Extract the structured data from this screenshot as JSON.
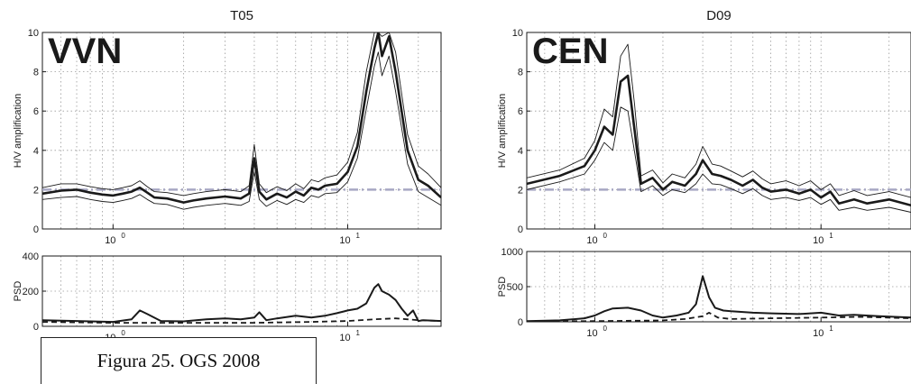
{
  "figure": {
    "caption": "Figura 25.  OGS 2008",
    "colors": {
      "ink": "#1a1a1a",
      "grid": "#9a9a9a",
      "threshold": "#a8a8c4",
      "paper": "#ffffff"
    }
  },
  "chart_data": [
    {
      "id": "T05-hv",
      "type": "line",
      "title": "T05",
      "station": "VVN",
      "xlabel": "",
      "ylabel": "H/V amplification",
      "xscale": "log",
      "xlim": [
        0.5,
        25
      ],
      "ylim": [
        0,
        10
      ],
      "yticks": [
        0,
        2,
        4,
        6,
        8,
        10
      ],
      "xticks": [
        {
          "value": 1,
          "label": "10",
          "exp": "0"
        },
        {
          "value": 10,
          "label": "10",
          "exp": "1"
        }
      ],
      "grid": true,
      "threshold": 2,
      "series": [
        {
          "role": "mean",
          "x": [
            0.5,
            0.6,
            0.7,
            0.8,
            0.9,
            1.0,
            1.1,
            1.2,
            1.3,
            1.4,
            1.5,
            1.7,
            2.0,
            2.2,
            2.5,
            3.0,
            3.5,
            3.8,
            4.0,
            4.2,
            4.5,
            5.0,
            5.5,
            6.0,
            6.5,
            7.0,
            7.5,
            8.0,
            9.0,
            10.0,
            11.0,
            12.0,
            13.0,
            13.5,
            14.0,
            15.0,
            16.0,
            18.0,
            20.0,
            22.0,
            25.0
          ],
          "y": [
            1.8,
            1.95,
            2.0,
            1.85,
            1.75,
            1.7,
            1.8,
            1.9,
            2.1,
            1.85,
            1.6,
            1.55,
            1.35,
            1.45,
            1.55,
            1.65,
            1.55,
            1.8,
            3.6,
            1.9,
            1.5,
            1.8,
            1.6,
            1.9,
            1.7,
            2.1,
            2.0,
            2.2,
            2.3,
            2.9,
            4.2,
            7.0,
            9.2,
            10.0,
            8.8,
            9.8,
            8.0,
            4.0,
            2.5,
            2.2,
            1.6
          ]
        },
        {
          "role": "upper",
          "x": [
            0.5,
            0.6,
            0.7,
            0.8,
            0.9,
            1.0,
            1.1,
            1.2,
            1.3,
            1.4,
            1.5,
            1.7,
            2.0,
            2.2,
            2.5,
            3.0,
            3.5,
            3.8,
            4.0,
            4.2,
            4.5,
            5.0,
            5.5,
            6.0,
            6.5,
            7.0,
            7.5,
            8.0,
            9.0,
            10.0,
            11.0,
            12.0,
            13.0,
            13.5,
            14.0,
            15.0,
            16.0,
            18.0,
            20.0,
            22.0,
            25.0
          ],
          "y": [
            2.1,
            2.3,
            2.3,
            2.15,
            2.05,
            2.0,
            2.1,
            2.2,
            2.45,
            2.15,
            1.9,
            1.85,
            1.7,
            1.8,
            1.9,
            2.0,
            1.9,
            2.2,
            4.3,
            2.3,
            1.85,
            2.15,
            1.95,
            2.3,
            2.05,
            2.5,
            2.4,
            2.6,
            2.75,
            3.4,
            4.9,
            8.0,
            10.0,
            10.0,
            9.8,
            10.0,
            9.0,
            4.8,
            3.2,
            2.8,
            2.1
          ]
        },
        {
          "role": "lower",
          "x": [
            0.5,
            0.6,
            0.7,
            0.8,
            0.9,
            1.0,
            1.1,
            1.2,
            1.3,
            1.4,
            1.5,
            1.7,
            2.0,
            2.2,
            2.5,
            3.0,
            3.5,
            3.8,
            4.0,
            4.2,
            4.5,
            5.0,
            5.5,
            6.0,
            6.5,
            7.0,
            7.5,
            8.0,
            9.0,
            10.0,
            11.0,
            12.0,
            13.0,
            13.5,
            14.0,
            15.0,
            16.0,
            18.0,
            20.0,
            22.0,
            25.0
          ],
          "y": [
            1.5,
            1.6,
            1.65,
            1.5,
            1.4,
            1.35,
            1.45,
            1.55,
            1.75,
            1.5,
            1.3,
            1.25,
            1.0,
            1.1,
            1.2,
            1.3,
            1.2,
            1.4,
            2.9,
            1.5,
            1.15,
            1.45,
            1.25,
            1.5,
            1.35,
            1.7,
            1.6,
            1.8,
            1.85,
            2.4,
            3.6,
            6.1,
            8.3,
            9.0,
            7.8,
            8.8,
            7.0,
            3.3,
            1.9,
            1.6,
            1.2
          ]
        }
      ]
    },
    {
      "id": "T05-psd",
      "type": "line",
      "title": "",
      "xlabel": "",
      "ylabel": "PSD",
      "xscale": "log",
      "xlim": [
        0.5,
        25
      ],
      "ylim": [
        0,
        400
      ],
      "yticks": [
        0,
        200,
        400
      ],
      "xticks": [
        {
          "value": 1,
          "label": "10",
          "exp": "0"
        },
        {
          "value": 10,
          "label": "10",
          "exp": "1"
        }
      ],
      "grid": true,
      "series": [
        {
          "role": "solid",
          "x": [
            0.5,
            0.7,
            1.0,
            1.2,
            1.3,
            1.4,
            1.6,
            2.0,
            2.5,
            3.0,
            3.5,
            4.0,
            4.2,
            4.5,
            5.0,
            6.0,
            7.0,
            8.0,
            9.0,
            10.0,
            11.0,
            12.0,
            13.0,
            13.5,
            14.0,
            15.0,
            16.0,
            17.0,
            18.0,
            19.0,
            20.0,
            21.0,
            25.0
          ],
          "y": [
            35,
            30,
            25,
            40,
            90,
            70,
            30,
            28,
            40,
            45,
            40,
            50,
            80,
            35,
            45,
            60,
            50,
            60,
            75,
            90,
            100,
            130,
            220,
            240,
            200,
            180,
            150,
            100,
            60,
            90,
            30,
            35,
            30
          ]
        },
        {
          "role": "dashed",
          "x": [
            0.5,
            1.0,
            2.0,
            3.0,
            4.0,
            5.0,
            7.0,
            10.0,
            13.0,
            16.0,
            20.0,
            25.0
          ],
          "y": [
            25,
            20,
            20,
            20,
            20,
            22,
            25,
            30,
            40,
            45,
            35,
            30
          ]
        }
      ]
    },
    {
      "id": "D09-hv",
      "type": "line",
      "title": "D09",
      "station": "CEN",
      "xlabel": "",
      "ylabel": "H/V amplification",
      "xscale": "log",
      "xlim": [
        0.5,
        25
      ],
      "ylim": [
        0,
        10
      ],
      "yticks": [
        0,
        2,
        4,
        6,
        8,
        10
      ],
      "xticks": [
        {
          "value": 1,
          "label": "10",
          "exp": "0"
        },
        {
          "value": 10,
          "label": "10",
          "exp": "1"
        }
      ],
      "grid": true,
      "threshold": 2,
      "series": [
        {
          "role": "mean",
          "x": [
            0.5,
            0.7,
            0.9,
            1.0,
            1.1,
            1.2,
            1.3,
            1.4,
            1.5,
            1.6,
            1.8,
            2.0,
            2.2,
            2.5,
            2.8,
            3.0,
            3.3,
            3.6,
            4.0,
            4.5,
            5.0,
            5.5,
            6.0,
            7.0,
            8.0,
            9.0,
            10.0,
            11.0,
            12.0,
            14.0,
            16.0,
            20.0,
            25.0
          ],
          "y": [
            2.3,
            2.7,
            3.2,
            4.0,
            5.2,
            4.8,
            7.5,
            7.8,
            5.0,
            2.3,
            2.6,
            2.0,
            2.4,
            2.2,
            2.8,
            3.5,
            2.8,
            2.7,
            2.5,
            2.2,
            2.5,
            2.1,
            1.9,
            2.0,
            1.8,
            2.0,
            1.6,
            1.9,
            1.3,
            1.5,
            1.3,
            1.5,
            1.2
          ]
        },
        {
          "role": "upper",
          "x": [
            0.5,
            0.7,
            0.9,
            1.0,
            1.1,
            1.2,
            1.3,
            1.4,
            1.5,
            1.6,
            1.8,
            2.0,
            2.2,
            2.5,
            2.8,
            3.0,
            3.3,
            3.6,
            4.0,
            4.5,
            5.0,
            5.5,
            6.0,
            7.0,
            8.0,
            9.0,
            10.0,
            11.0,
            12.0,
            14.0,
            16.0,
            20.0,
            25.0
          ],
          "y": [
            2.6,
            3.0,
            3.6,
            4.5,
            6.1,
            5.7,
            8.8,
            9.4,
            6.3,
            2.7,
            3.0,
            2.35,
            2.8,
            2.6,
            3.3,
            4.2,
            3.3,
            3.2,
            2.95,
            2.65,
            2.95,
            2.55,
            2.3,
            2.45,
            2.2,
            2.45,
            2.0,
            2.3,
            1.7,
            1.95,
            1.7,
            1.9,
            1.6
          ]
        },
        {
          "role": "lower",
          "x": [
            0.5,
            0.7,
            0.9,
            1.0,
            1.1,
            1.2,
            1.3,
            1.4,
            1.5,
            1.6,
            1.8,
            2.0,
            2.2,
            2.5,
            2.8,
            3.0,
            3.3,
            3.6,
            4.0,
            4.5,
            5.0,
            5.5,
            6.0,
            7.0,
            8.0,
            9.0,
            10.0,
            11.0,
            12.0,
            14.0,
            16.0,
            20.0,
            25.0
          ],
          "y": [
            2.0,
            2.4,
            2.8,
            3.5,
            4.4,
            4.0,
            6.2,
            6.0,
            3.9,
            1.9,
            2.2,
            1.7,
            2.0,
            1.85,
            2.3,
            2.8,
            2.3,
            2.25,
            2.05,
            1.8,
            2.05,
            1.7,
            1.5,
            1.6,
            1.45,
            1.6,
            1.25,
            1.5,
            0.95,
            1.1,
            0.95,
            1.1,
            0.85
          ]
        }
      ]
    },
    {
      "id": "D09-psd",
      "type": "line",
      "title": "",
      "xlabel": "",
      "ylabel": "PSD",
      "xscale": "log",
      "xlim": [
        0.5,
        25
      ],
      "ylim": [
        0,
        1000
      ],
      "yticks": [
        0,
        500,
        1000
      ],
      "xticks": [
        {
          "value": 1,
          "label": "10",
          "exp": "0"
        },
        {
          "value": 10,
          "label": "10",
          "exp": "1"
        }
      ],
      "grid": true,
      "series": [
        {
          "role": "solid",
          "x": [
            0.5,
            0.7,
            0.9,
            1.0,
            1.1,
            1.2,
            1.4,
            1.6,
            1.8,
            2.0,
            2.3,
            2.6,
            2.8,
            3.0,
            3.2,
            3.4,
            3.7,
            4.0,
            5.0,
            6.0,
            8.0,
            10.0,
            12.0,
            14.0,
            18.0,
            25.0
          ],
          "y": [
            10,
            20,
            50,
            90,
            150,
            190,
            200,
            160,
            90,
            60,
            90,
            130,
            250,
            650,
            350,
            200,
            160,
            150,
            130,
            120,
            110,
            130,
            90,
            100,
            80,
            60
          ]
        },
        {
          "role": "dashed",
          "x": [
            0.5,
            1.0,
            1.5,
            2.0,
            2.5,
            3.0,
            3.2,
            3.5,
            4.0,
            6.0,
            10.0,
            15.0,
            25.0
          ],
          "y": [
            5,
            10,
            15,
            20,
            40,
            80,
            130,
            60,
            40,
            50,
            60,
            70,
            50
          ]
        }
      ]
    }
  ]
}
